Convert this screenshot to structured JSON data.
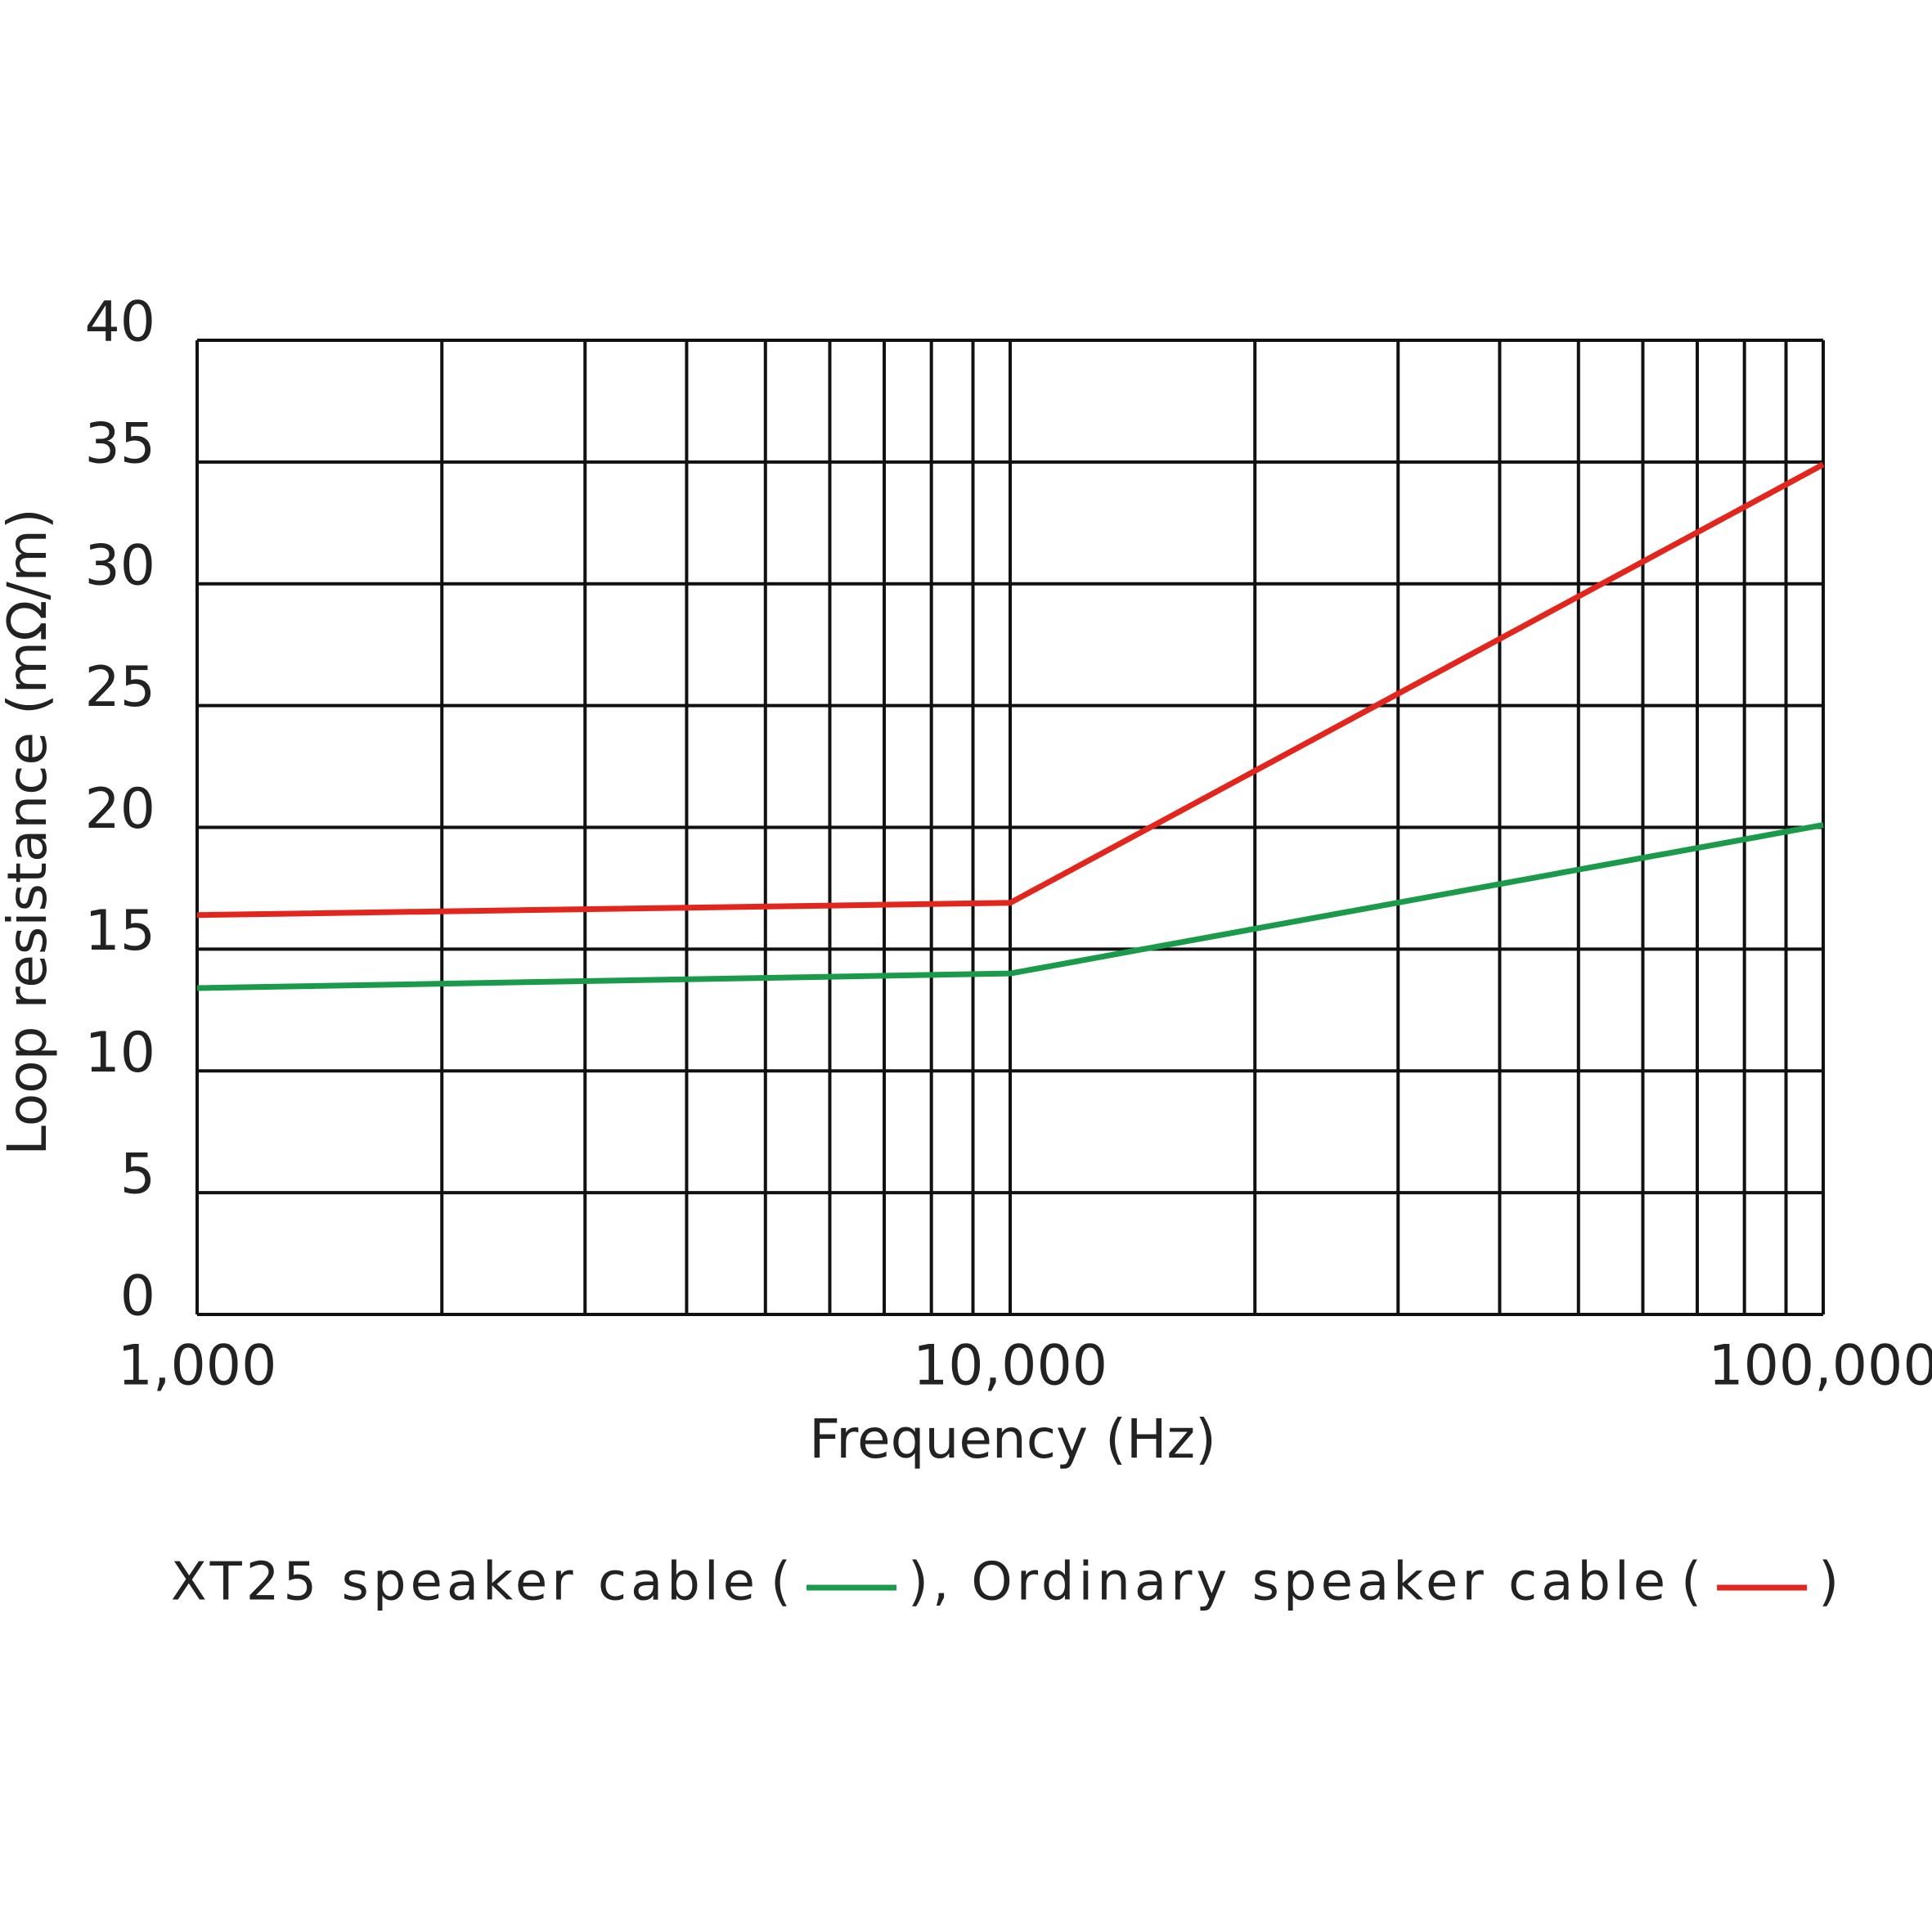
{
  "chart_data": {
    "type": "line",
    "x_label": "Frequency (Hz)",
    "y_label": "Loop resistance (mΩ/m)",
    "x": [
      1000,
      10000,
      100000
    ],
    "series": [
      {
        "name": "XT25 speaker cable",
        "color": "#1b9a4b",
        "values": [
          13.4,
          14.0,
          20.1
        ]
      },
      {
        "name": "Ordinary speaker cable",
        "color": "#e2251d",
        "values": [
          16.4,
          16.9,
          34.9
        ]
      }
    ],
    "xlim": [
      1000,
      100000
    ],
    "log_x": true,
    "xticks": [
      {
        "value": 1000,
        "label": "1,000"
      },
      {
        "value": 10000,
        "label": "10,000"
      },
      {
        "value": 100000,
        "label": "100,000"
      }
    ],
    "x_minor_ticks": [
      2000,
      3000,
      4000,
      5000,
      6000,
      7000,
      8000,
      9000,
      20000,
      30000,
      40000,
      50000,
      60000,
      70000,
      80000,
      90000
    ],
    "ylim": [
      0,
      40
    ],
    "yticks": [
      0,
      5,
      10,
      15,
      20,
      25,
      30,
      35,
      40
    ],
    "grid": true,
    "legend_open": "(",
    "legend_close": ")",
    "legend_separator": ","
  }
}
